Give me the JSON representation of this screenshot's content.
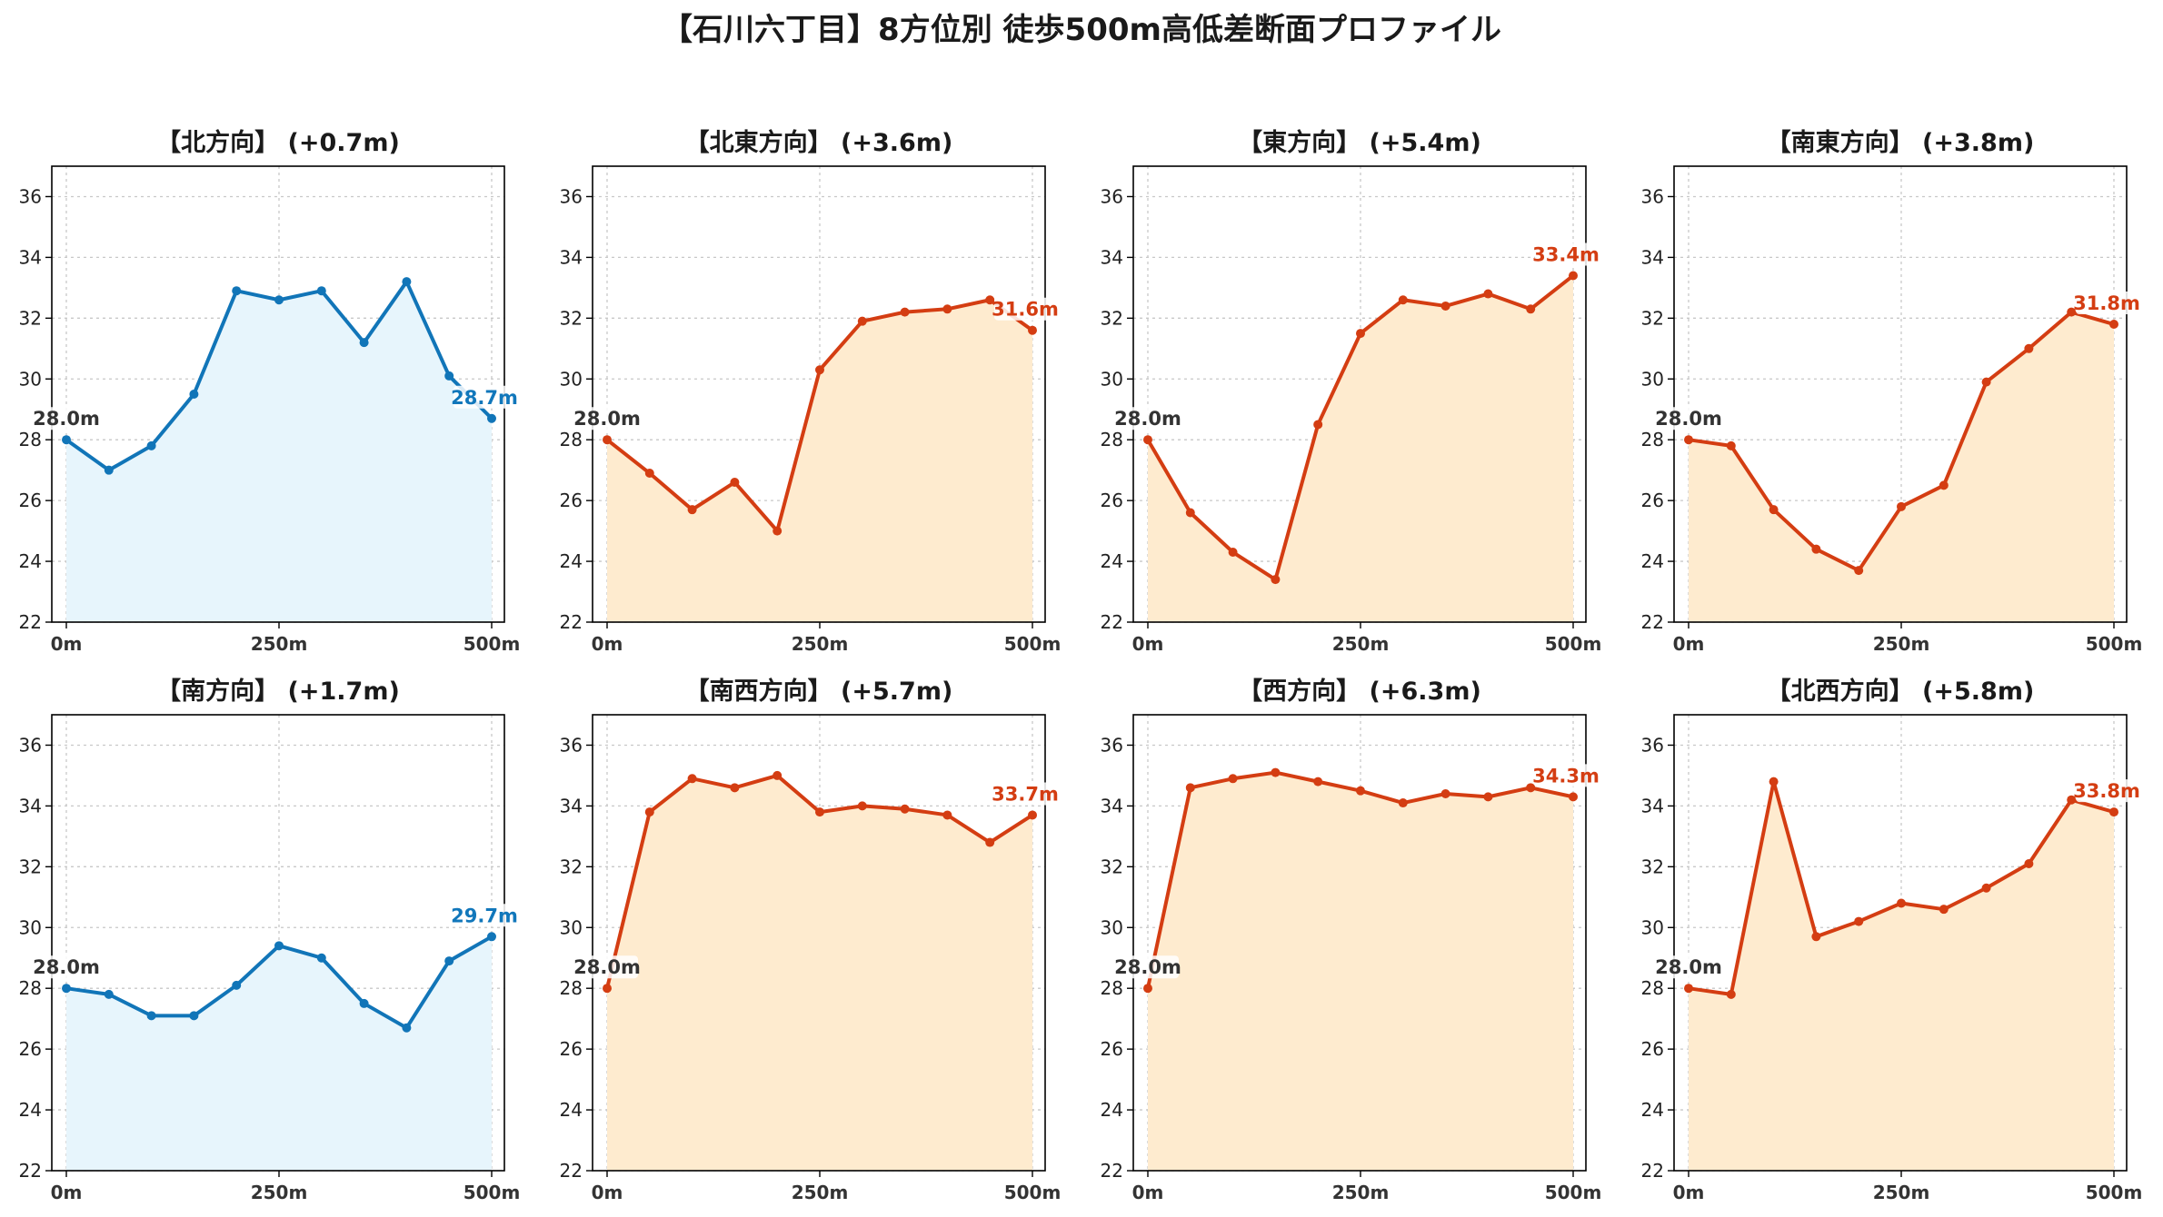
{
  "figure": {
    "title": "【石川六丁目】8方位別 徒歩500m高低差断面プロファイル"
  },
  "colors": {
    "down_line": "#1175b8",
    "down_fill": "#e7f5fc",
    "up_line": "#d43d12",
    "up_fill": "#feebcf",
    "label_down": "#1177bb",
    "label_up": "#d43d12"
  },
  "chart_data": [
    {
      "type": "area",
      "title": "【北方向】 (+0.7m)",
      "trend": "down",
      "x": [
        0,
        50,
        100,
        150,
        200,
        250,
        300,
        350,
        400,
        450,
        500
      ],
      "values": [
        28.0,
        27.0,
        27.8,
        29.5,
        32.9,
        32.6,
        32.9,
        31.2,
        33.2,
        30.1,
        28.7
      ],
      "xticks": [
        "0m",
        "250m",
        "500m"
      ],
      "yticks": [
        "22",
        "24",
        "26",
        "28",
        "30",
        "32",
        "34",
        "36"
      ],
      "ylim": [
        22,
        37
      ],
      "xlim": [
        0,
        500
      ],
      "grid": true,
      "start_label": "28.0m",
      "end_label": "28.7m"
    },
    {
      "type": "area",
      "title": "【北東方向】 (+3.6m)",
      "trend": "up",
      "x": [
        0,
        50,
        100,
        150,
        200,
        250,
        300,
        350,
        400,
        450,
        500
      ],
      "values": [
        28.0,
        26.9,
        25.7,
        26.6,
        25.0,
        30.3,
        31.9,
        32.2,
        32.3,
        32.6,
        31.6
      ],
      "xticks": [
        "0m",
        "250m",
        "500m"
      ],
      "yticks": [
        "22",
        "24",
        "26",
        "28",
        "30",
        "32",
        "34",
        "36"
      ],
      "ylim": [
        22,
        37
      ],
      "xlim": [
        0,
        500
      ],
      "grid": true,
      "start_label": "28.0m",
      "end_label": "31.6m"
    },
    {
      "type": "area",
      "title": "【東方向】 (+5.4m)",
      "trend": "up",
      "x": [
        0,
        50,
        100,
        150,
        200,
        250,
        300,
        350,
        400,
        450,
        500
      ],
      "values": [
        28.0,
        25.6,
        24.3,
        23.4,
        28.5,
        31.5,
        32.6,
        32.4,
        32.8,
        32.3,
        33.4
      ],
      "xticks": [
        "0m",
        "250m",
        "500m"
      ],
      "yticks": [
        "22",
        "24",
        "26",
        "28",
        "30",
        "32",
        "34",
        "36"
      ],
      "ylim": [
        22,
        37
      ],
      "xlim": [
        0,
        500
      ],
      "grid": true,
      "start_label": "28.0m",
      "end_label": "33.4m"
    },
    {
      "type": "area",
      "title": "【南東方向】 (+3.8m)",
      "trend": "up",
      "x": [
        0,
        50,
        100,
        150,
        200,
        250,
        300,
        350,
        400,
        450,
        500
      ],
      "values": [
        28.0,
        27.8,
        25.7,
        24.4,
        23.7,
        25.8,
        26.5,
        29.9,
        31.0,
        32.2,
        31.8
      ],
      "xticks": [
        "0m",
        "250m",
        "500m"
      ],
      "yticks": [
        "22",
        "24",
        "26",
        "28",
        "30",
        "32",
        "34",
        "36"
      ],
      "ylim": [
        22,
        37
      ],
      "xlim": [
        0,
        500
      ],
      "grid": true,
      "start_label": "28.0m",
      "end_label": "31.8m"
    },
    {
      "type": "area",
      "title": "【南方向】 (+1.7m)",
      "trend": "down",
      "x": [
        0,
        50,
        100,
        150,
        200,
        250,
        300,
        350,
        400,
        450,
        500
      ],
      "values": [
        28.0,
        27.8,
        27.1,
        27.1,
        28.1,
        29.4,
        29.0,
        27.5,
        26.7,
        28.9,
        29.7
      ],
      "xticks": [
        "0m",
        "250m",
        "500m"
      ],
      "yticks": [
        "22",
        "24",
        "26",
        "28",
        "30",
        "32",
        "34",
        "36"
      ],
      "ylim": [
        22,
        37
      ],
      "xlim": [
        0,
        500
      ],
      "grid": true,
      "start_label": "28.0m",
      "end_label": "29.7m"
    },
    {
      "type": "area",
      "title": "【南西方向】 (+5.7m)",
      "trend": "up",
      "x": [
        0,
        50,
        100,
        150,
        200,
        250,
        300,
        350,
        400,
        450,
        500
      ],
      "values": [
        28.0,
        33.8,
        34.9,
        34.6,
        35.0,
        33.8,
        34.0,
        33.9,
        33.7,
        32.8,
        33.7
      ],
      "xticks": [
        "0m",
        "250m",
        "500m"
      ],
      "yticks": [
        "22",
        "24",
        "26",
        "28",
        "30",
        "32",
        "34",
        "36"
      ],
      "ylim": [
        22,
        37
      ],
      "xlim": [
        0,
        500
      ],
      "grid": true,
      "start_label": "28.0m",
      "end_label": "33.7m"
    },
    {
      "type": "area",
      "title": "【西方向】 (+6.3m)",
      "trend": "up",
      "x": [
        0,
        50,
        100,
        150,
        200,
        250,
        300,
        350,
        400,
        450,
        500
      ],
      "values": [
        28.0,
        34.6,
        34.9,
        35.1,
        34.8,
        34.5,
        34.1,
        34.4,
        34.3,
        34.6,
        34.3
      ],
      "xticks": [
        "0m",
        "250m",
        "500m"
      ],
      "yticks": [
        "22",
        "24",
        "26",
        "28",
        "30",
        "32",
        "34",
        "36"
      ],
      "ylim": [
        22,
        37
      ],
      "xlim": [
        0,
        500
      ],
      "grid": true,
      "start_label": "28.0m",
      "end_label": "34.3m"
    },
    {
      "type": "area",
      "title": "【北西方向】 (+5.8m)",
      "trend": "up",
      "x": [
        0,
        50,
        100,
        150,
        200,
        250,
        300,
        350,
        400,
        450,
        500
      ],
      "values": [
        28.0,
        27.8,
        34.8,
        29.7,
        30.2,
        30.8,
        30.6,
        31.3,
        32.1,
        34.2,
        33.8
      ],
      "xticks": [
        "0m",
        "250m",
        "500m"
      ],
      "yticks": [
        "22",
        "24",
        "26",
        "28",
        "30",
        "32",
        "34",
        "36"
      ],
      "ylim": [
        22,
        37
      ],
      "xlim": [
        0,
        500
      ],
      "grid": true,
      "start_label": "28.0m",
      "end_label": "33.8m"
    }
  ]
}
